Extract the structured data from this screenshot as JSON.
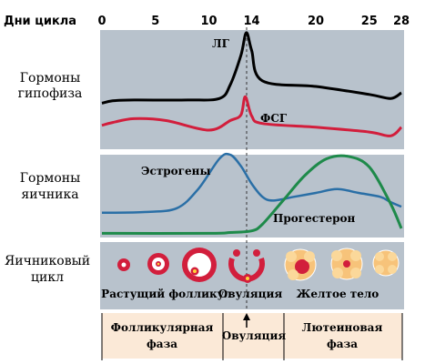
{
  "header": {
    "title": "Дни цикла",
    "day_ticks": [
      "0",
      "5",
      "10",
      "14",
      "20",
      "25",
      "28"
    ],
    "day_values": [
      0,
      5,
      10,
      14,
      20,
      25,
      28
    ]
  },
  "rows": {
    "pituitary": {
      "line1": "Гормоны",
      "line2": "гипофиза"
    },
    "ovary_hormones": {
      "line1": "Гормоны",
      "line2": "яичника"
    },
    "ovarian_cycle": {
      "line1": "Яичниковый",
      "line2": "цикл"
    }
  },
  "curves": {
    "lh": {
      "label": "ЛГ",
      "color": "#000000"
    },
    "fsh": {
      "label": "ФСГ",
      "color": "#d21e3c"
    },
    "estrogen": {
      "label": "Эстрогены",
      "color": "#2a6fa6"
    },
    "progesterone": {
      "label": "Прогестерон",
      "color": "#1e8a4a"
    }
  },
  "stages": {
    "growing_follicle": "Растущий фолликул",
    "ovulation": "Овуляция",
    "corpus_luteum": "Желтое тело"
  },
  "phases": {
    "follicular": {
      "line1": "Фолликулярная",
      "line2": "фаза"
    },
    "ovulation": "Овуляция",
    "luteal": {
      "line1": "Лютеиновая",
      "line2": "фаза"
    }
  },
  "colors": {
    "panel_bg": "#b8c2cc",
    "phase_bg": "#fbe9d7",
    "corpus": "#f7c37a"
  },
  "chart_data": {
    "type": "line",
    "xlabel": "Дни цикла",
    "xlim": [
      0,
      28
    ],
    "series": [
      {
        "name": "ЛГ",
        "x": [
          0,
          1,
          3,
          8,
          11,
          12,
          13,
          13.5,
          14,
          15,
          20,
          25,
          27,
          28
        ],
        "y": [
          0.12,
          0.15,
          0.16,
          0.16,
          0.18,
          0.35,
          0.72,
          1.0,
          0.78,
          0.4,
          0.33,
          0.23,
          0.18,
          0.25
        ]
      },
      {
        "name": "ФСГ",
        "x": [
          0,
          1,
          3,
          6,
          10,
          12,
          13,
          13.4,
          14,
          15,
          20,
          25,
          27,
          28
        ],
        "y": [
          0.05,
          0.08,
          0.12,
          0.1,
          0.0,
          0.1,
          0.16,
          0.35,
          0.15,
          0.07,
          0.03,
          -0.02,
          -0.06,
          0.03
        ]
      },
      {
        "name": "Эстрогены",
        "x": [
          0,
          4,
          7,
          9,
          11,
          12,
          13,
          14,
          15,
          16,
          18,
          20,
          22,
          24,
          26,
          27,
          28
        ],
        "y": [
          0.24,
          0.25,
          0.3,
          0.55,
          0.95,
          1.0,
          0.85,
          0.62,
          0.45,
          0.4,
          0.45,
          0.5,
          0.55,
          0.5,
          0.45,
          0.38,
          0.32
        ]
      },
      {
        "name": "Прогестерон",
        "x": [
          0,
          10,
          12,
          14,
          15,
          17,
          19,
          21,
          23,
          25,
          27,
          28
        ],
        "y": [
          0.04,
          0.04,
          0.05,
          0.07,
          0.15,
          0.45,
          0.75,
          0.95,
          0.98,
          0.85,
          0.4,
          0.1
        ]
      }
    ]
  }
}
